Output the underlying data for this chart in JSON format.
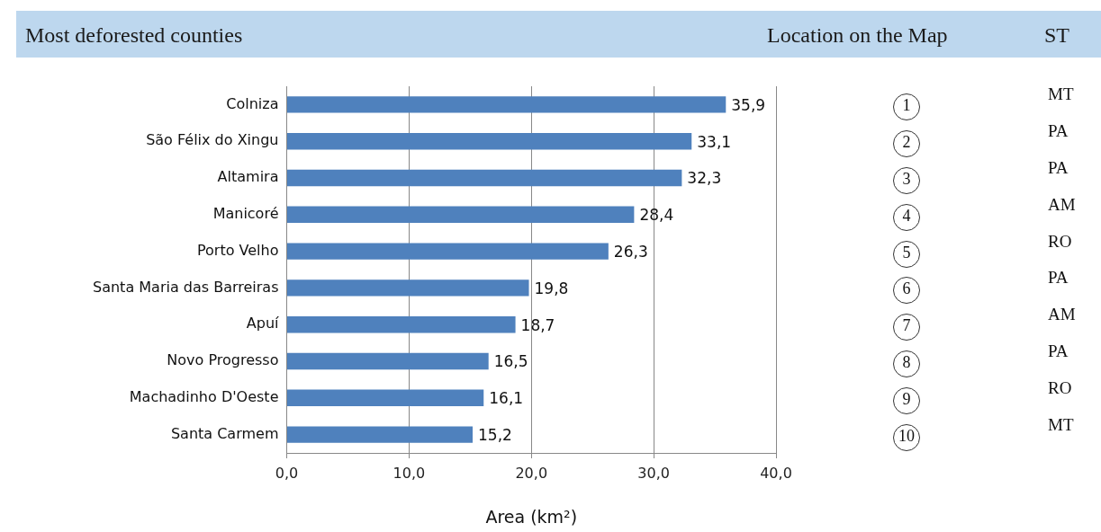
{
  "chart_data": {
    "type": "bar",
    "orientation": "horizontal",
    "title": "Most deforested counties",
    "xlabel": "Area (km²)",
    "categories": [
      "Colniza",
      "São Félix do Xingu",
      "Altamira",
      "Manicoré",
      "Porto Velho",
      "Santa Maria das Barreiras",
      "Apuí",
      "Novo Progresso",
      "Machadinho D'Oeste",
      "Santa Carmem"
    ],
    "values": [
      35.9,
      33.1,
      32.3,
      28.4,
      26.3,
      19.8,
      18.7,
      16.5,
      16.1,
      15.2
    ],
    "value_labels": [
      "35,9",
      "33,1",
      "32,3",
      "28,4",
      "26,3",
      "19,8",
      "18,7",
      "16,5",
      "16,1",
      "15,2"
    ],
    "color": "#4f81bd",
    "xlim": [
      0,
      40
    ],
    "xticks": [
      {
        "value": 0,
        "label": "0,0"
      },
      {
        "value": 10,
        "label": "10,0"
      },
      {
        "value": 20,
        "label": "20,0"
      },
      {
        "value": 30,
        "label": "30,0"
      },
      {
        "value": 40,
        "label": "40,0"
      }
    ],
    "grid": "x",
    "legend": false,
    "annotations": [
      "Location on the Map",
      "ST",
      "1",
      "MT",
      "2",
      "PA",
      "3",
      "PA",
      "4",
      "AM",
      "5",
      "RO",
      "6",
      "PA",
      "7",
      "AM",
      "8",
      "PA",
      "9",
      "RO",
      "10",
      "MT"
    ]
  }
}
